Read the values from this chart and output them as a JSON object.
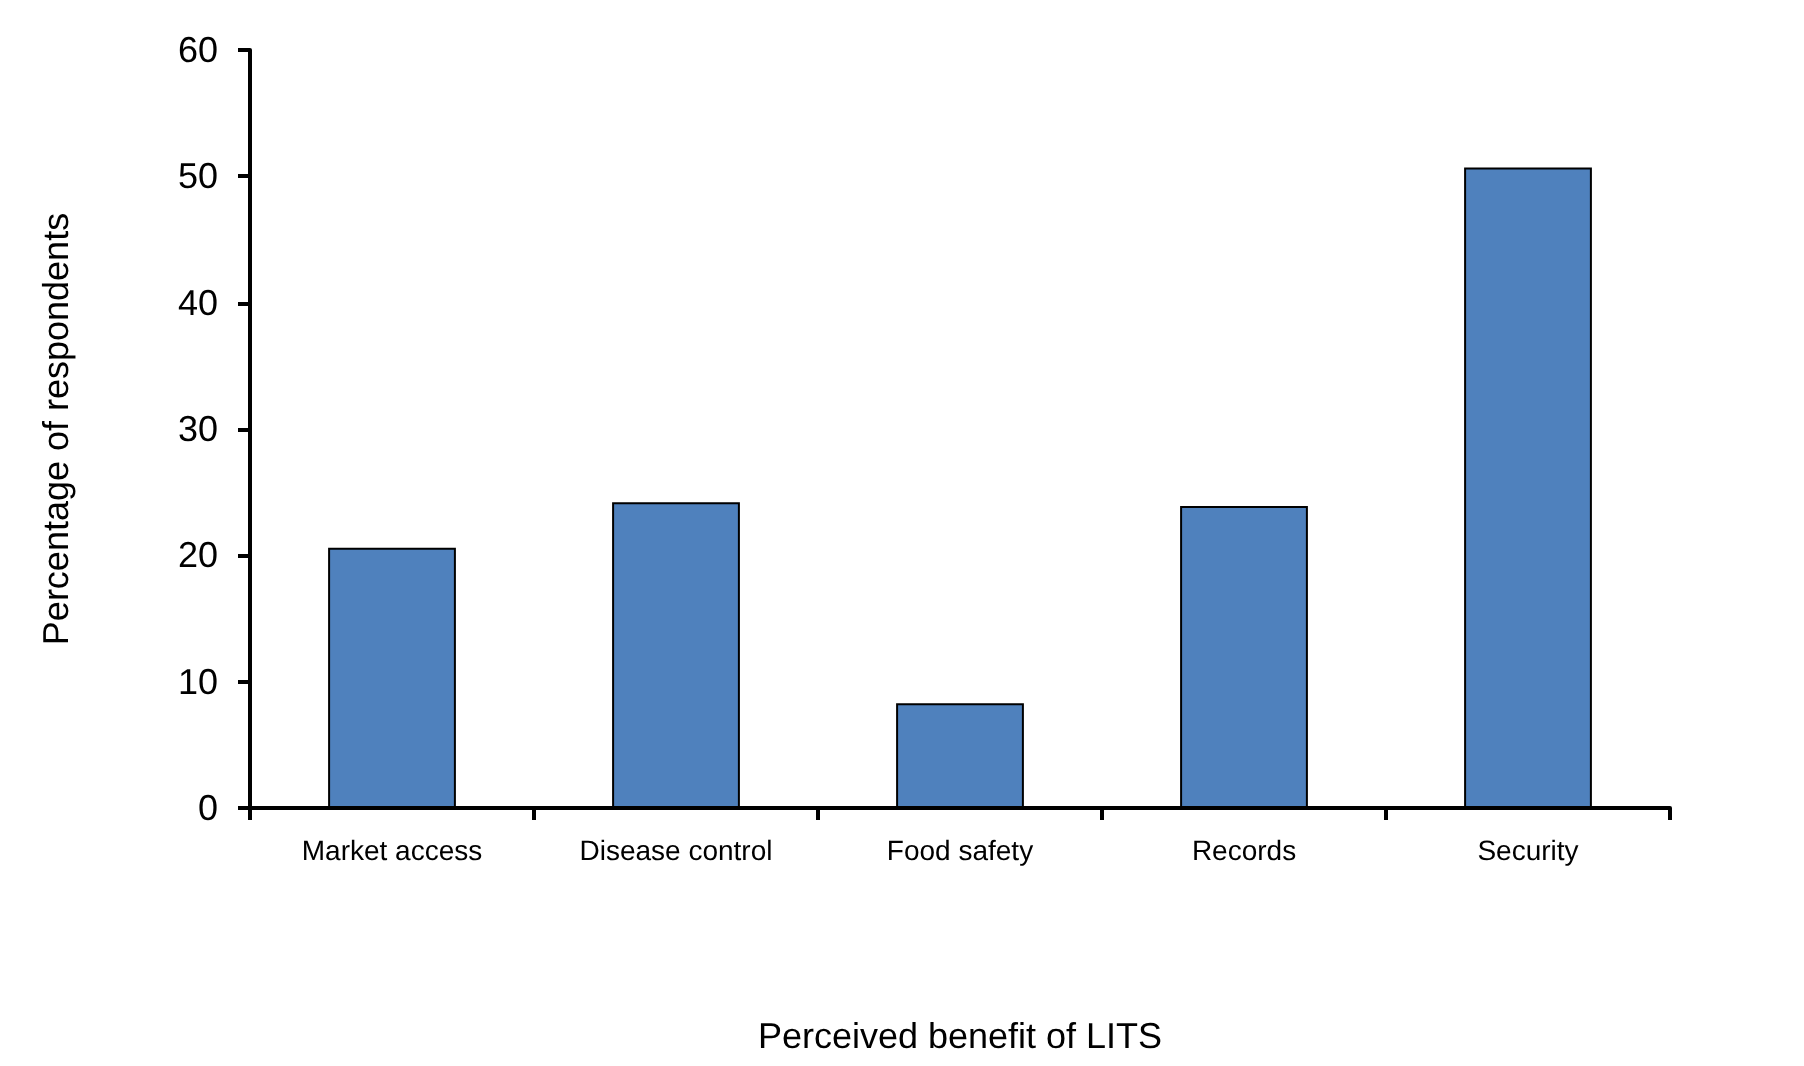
{
  "chart_data": {
    "type": "bar",
    "xlabel": "Perceived benefit of LITS",
    "ylabel": "Percentage of respondents",
    "categories": [
      "Market access",
      "Disease control",
      "Food safety",
      "Records",
      "Security"
    ],
    "values": [
      20.6,
      24.2,
      8.3,
      23.9,
      50.7
    ],
    "color": "#4f81bd",
    "ylim": [
      0,
      60
    ],
    "yticks": [
      0,
      10,
      20,
      30,
      40,
      50,
      60
    ]
  }
}
